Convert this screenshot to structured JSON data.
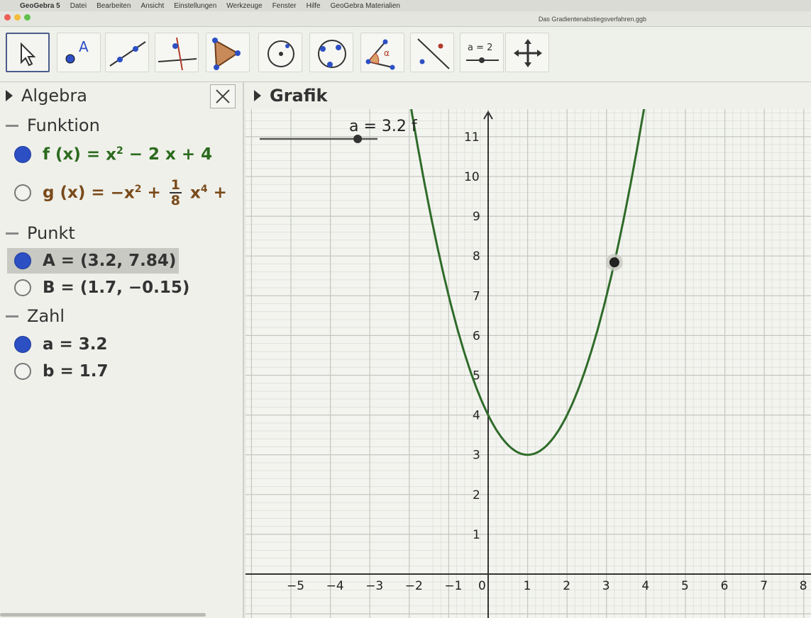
{
  "menubar": {
    "app": "GeoGebra 5",
    "items": [
      "Datei",
      "Bearbeiten",
      "Ansicht",
      "Einstellungen",
      "Werkzeuge",
      "Fenster",
      "Hilfe",
      "GeoGebra Materialien"
    ]
  },
  "window": {
    "title": "Das Gradientenabstiegsverfahren.ggb"
  },
  "toolbar": {
    "tools": [
      {
        "icon": "move-arrow-icon"
      },
      {
        "icon": "point-icon",
        "label": "A"
      },
      {
        "icon": "line-icon"
      },
      {
        "icon": "perpendicular-line-icon"
      },
      {
        "icon": "polygon-icon"
      },
      {
        "icon": "circle-center-icon"
      },
      {
        "icon": "circle-three-points-icon"
      },
      {
        "icon": "angle-icon",
        "label": "α"
      },
      {
        "icon": "reflect-icon"
      },
      {
        "icon": "slider-icon",
        "label": "a = 2"
      },
      {
        "icon": "move-graphics-view-icon"
      }
    ]
  },
  "algebra": {
    "title": "Algebra",
    "categories": {
      "funktion": "Funktion",
      "punkt": "Punkt",
      "zahl": "Zahl"
    },
    "f": {
      "name": "f (x)",
      "eq": "=",
      "expr_a": "x",
      "exp_a": "2",
      "expr_b": "− 2 x + 4"
    },
    "g": {
      "name": "g (x)",
      "eq": "=",
      "expr_a": "−x",
      "exp_a": "2",
      "plus": "+",
      "frac_num": "1",
      "frac_den": "8",
      "expr_b": "x",
      "exp_b": "4",
      "trail": "+"
    },
    "point_a": "A = (3.2, 7.84)",
    "point_b": "B = (1.7, −0.15)",
    "num_a": "a = 3.2",
    "num_b": "b = 1.7"
  },
  "graphics": {
    "title": "Grafik",
    "slider_label": "a = 3.2 f",
    "x_ticks": [
      "−5",
      "−4",
      "−3",
      "−2",
      "−1",
      "0",
      "1",
      "2",
      "3",
      "4",
      "5",
      "6",
      "7",
      "8"
    ],
    "y_ticks": [
      "1",
      "2",
      "3",
      "4",
      "5",
      "6",
      "7",
      "8",
      "9",
      "10",
      "11"
    ]
  },
  "plot": {
    "function": "f(x) = x^2 - 2x + 4",
    "curve_color": "#2f6b2a",
    "point_A": {
      "x": 3.2,
      "y": 7.84
    },
    "slider_a": 3.2,
    "x_range": [
      -5,
      8
    ],
    "y_range": [
      0,
      11
    ]
  }
}
